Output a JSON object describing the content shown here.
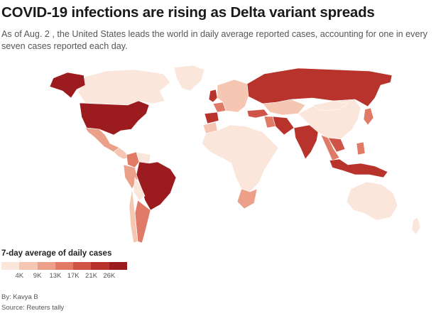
{
  "header": {
    "title": "COVID-19 infections are rising as Delta variant spreads",
    "subtitle": "As of Aug. 2 , the United States leads the world in daily average reported cases, accounting for one in every seven cases reported each day."
  },
  "legend": {
    "title": "7-day average of daily cases",
    "ticks": [
      "4K",
      "9K",
      "13K",
      "17K",
      "21K",
      "26K"
    ],
    "colors": [
      "#fbe6dc",
      "#f5c6b2",
      "#eca08a",
      "#e07a66",
      "#cf5447",
      "#b8332c",
      "#9b1b1e"
    ]
  },
  "map_fill": {
    "ocean": "#ffffff",
    "border": "#ffffff",
    "levels": {
      "usa": 6,
      "canada": 0,
      "alaska": 6,
      "greenland": 0,
      "mexico": 2,
      "central_america": 1,
      "colombia": 3,
      "venezuela": 0,
      "peru": 2,
      "brazil": 6,
      "bolivia": 0,
      "argentina": 3,
      "chile": 1,
      "uk": 5,
      "spain": 5,
      "france": 3,
      "europe": 1,
      "turkey": 4,
      "russia": 5,
      "kazakhstan": 1,
      "iran": 5,
      "iraq": 3,
      "india": 5,
      "china": 0,
      "mongolia": 0,
      "southeast_asia": 3,
      "thailand": 4,
      "indonesia": 5,
      "philippines": 3,
      "japan": 3,
      "africa": 0,
      "morocco": 1,
      "south_africa": 2,
      "australia": 0
    }
  },
  "credits": {
    "byline": "By: Kavya B",
    "source": "Source: Reuters tally"
  }
}
